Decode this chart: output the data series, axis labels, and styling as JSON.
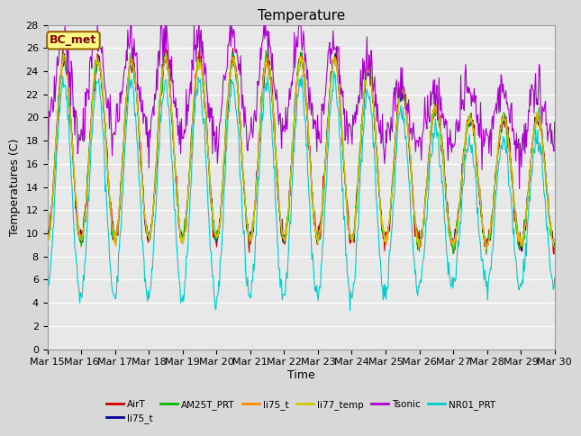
{
  "title": "Temperature",
  "ylabel": "Temperatures (C)",
  "xlabel": "Time",
  "annotation_text": "BC_met",
  "ylim": [
    0,
    28
  ],
  "yticks": [
    0,
    2,
    4,
    6,
    8,
    10,
    12,
    14,
    16,
    18,
    20,
    22,
    24,
    26,
    28
  ],
  "x_tick_labels": [
    "Mar 15",
    "Mar 16",
    "Mar 17",
    "Mar 18",
    "Mar 19",
    "Mar 20",
    "Mar 21",
    "Mar 22",
    "Mar 23",
    "Mar 24",
    "Mar 25",
    "Mar 26",
    "Mar 27",
    "Mar 28",
    "Mar 29",
    "Mar 30"
  ],
  "series": [
    {
      "name": "AirT",
      "color": "#cc0000"
    },
    {
      "name": "li75_t",
      "color": "#000099"
    },
    {
      "name": "AM25T_PRT",
      "color": "#00bb00"
    },
    {
      "name": "li75_t",
      "color": "#ff8800"
    },
    {
      "name": "li77_temp",
      "color": "#cccc00"
    },
    {
      "name": "Tsonic",
      "color": "#aa00cc"
    },
    {
      "name": "NR01_PRT",
      "color": "#00cccc"
    }
  ],
  "background_color": "#d8d8d8",
  "plot_bg_color": "#e8e8e8",
  "grid_color": "#ffffff",
  "title_fontsize": 11,
  "label_fontsize": 9,
  "tick_fontsize": 8
}
